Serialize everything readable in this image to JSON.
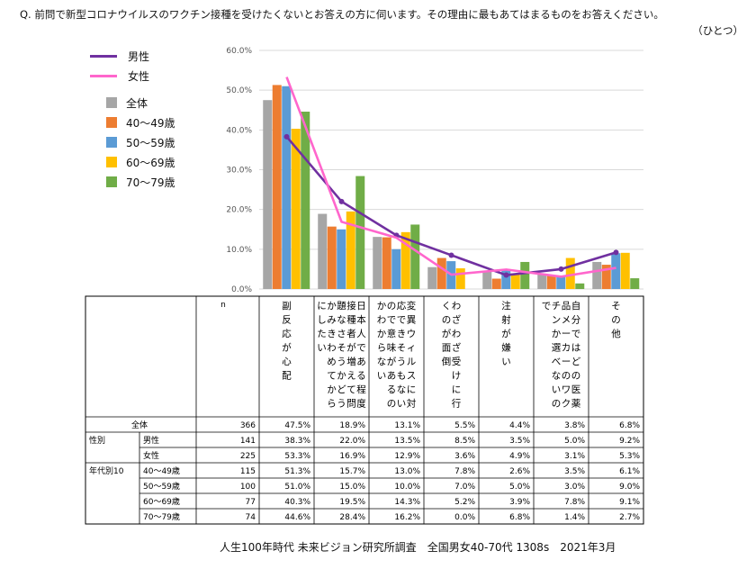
{
  "title": "Q. 前問で新型コロナウイルスのワクチン接種を受けたくないとお答えの方に伺います。その理由に最もあてはまるものをお答えください。",
  "title_suffix": "（ひとつ）",
  "footer": "人生100年時代 未来ビジョン研究所調査　全国男女40-70代 1308s　2021年3月",
  "colors": {
    "全体": "#A6A6A6",
    "40〜49歳": "#ED7D31",
    "50〜59歳": "#5B9BD5",
    "60〜69歳": "#FFC000",
    "70〜79歳": "#70AD47",
    "男性": "#7030A0",
    "女性": "#FF66CC"
  },
  "legend": {
    "lines": [
      "男性",
      "女性"
    ],
    "bars": [
      "全体",
      "40〜49歳",
      "50〜59歳",
      "60〜69歳",
      "70〜79歳"
    ]
  },
  "chart_data": {
    "type": "bar",
    "title": "",
    "ylim": [
      0,
      60
    ],
    "yticks": [
      "0.0%",
      "10.0%",
      "20.0%",
      "30.0%",
      "40.0%",
      "50.0%",
      "60.0%"
    ],
    "categories": [
      "副反応が心配",
      "日本人である程度接種者が増えて問題なさそうかどうかみきわめてからにしたい",
      "変異ウィルスに対応できそうもないので意味があるのかわからない",
      "わざわざ受けに行くのが面倒",
      "注射が嫌い",
      "自分ではどの医薬品メーカーのワクチンか選べないので",
      "その他"
    ],
    "bar_series": [
      {
        "name": "全体",
        "values": [
          47.5,
          18.9,
          13.1,
          5.5,
          4.4,
          3.8,
          6.8
        ]
      },
      {
        "name": "40〜49歳",
        "values": [
          51.3,
          15.7,
          13.0,
          7.8,
          2.6,
          3.5,
          6.1
        ]
      },
      {
        "name": "50〜59歳",
        "values": [
          51.0,
          15.0,
          10.0,
          7.0,
          5.0,
          3.0,
          9.0
        ]
      },
      {
        "name": "60〜69歳",
        "values": [
          40.3,
          19.5,
          14.3,
          5.2,
          3.9,
          7.8,
          9.1
        ]
      },
      {
        "name": "70〜79歳",
        "values": [
          44.6,
          28.4,
          16.2,
          0.0,
          6.8,
          1.4,
          2.7
        ]
      }
    ],
    "line_series": [
      {
        "name": "男性",
        "values": [
          38.3,
          22.0,
          13.5,
          8.5,
          3.5,
          5.0,
          9.2
        ]
      },
      {
        "name": "女性",
        "values": [
          53.3,
          16.9,
          12.9,
          3.6,
          4.9,
          3.1,
          5.3
        ]
      }
    ]
  },
  "table": {
    "n_header": "n",
    "groups": {
      "性別": "性別",
      "年代別": "年代別10"
    },
    "rows": [
      {
        "group": "",
        "label": "全体",
        "n": "366",
        "values": [
          "47.5%",
          "18.9%",
          "13.1%",
          "5.5%",
          "4.4%",
          "3.8%",
          "6.8%"
        ]
      },
      {
        "group": "性別",
        "label": "男性",
        "n": "141",
        "values": [
          "38.3%",
          "22.0%",
          "13.5%",
          "8.5%",
          "3.5%",
          "5.0%",
          "9.2%"
        ]
      },
      {
        "group": "",
        "label": "女性",
        "n": "225",
        "values": [
          "53.3%",
          "16.9%",
          "12.9%",
          "3.6%",
          "4.9%",
          "3.1%",
          "5.3%"
        ]
      },
      {
        "group": "年代別10",
        "label": "40〜49歳",
        "n": "115",
        "values": [
          "51.3%",
          "15.7%",
          "13.0%",
          "7.8%",
          "2.6%",
          "3.5%",
          "6.1%"
        ]
      },
      {
        "group": "",
        "label": "50〜59歳",
        "n": "100",
        "values": [
          "51.0%",
          "15.0%",
          "10.0%",
          "7.0%",
          "5.0%",
          "3.0%",
          "9.0%"
        ]
      },
      {
        "group": "",
        "label": "60〜69歳",
        "n": "77",
        "values": [
          "40.3%",
          "19.5%",
          "14.3%",
          "5.2%",
          "3.9%",
          "7.8%",
          "9.1%"
        ]
      },
      {
        "group": "",
        "label": "70〜79歳",
        "n": "74",
        "values": [
          "44.6%",
          "28.4%",
          "16.2%",
          "0.0%",
          "6.8%",
          "1.4%",
          "2.7%"
        ]
      }
    ]
  }
}
